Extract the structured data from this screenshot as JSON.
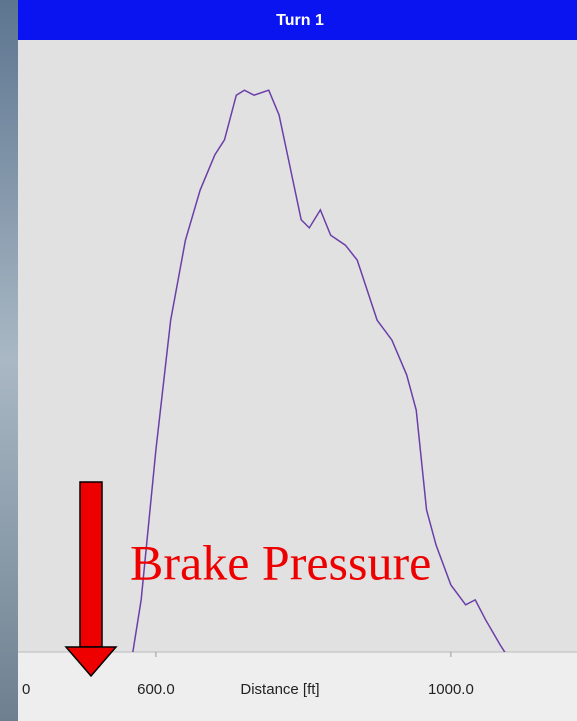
{
  "chart_data": {
    "type": "line",
    "title": "Turn 1",
    "xlabel": "Distance [ft]",
    "x_edge_label": "0",
    "annotation": "Brake Pressure",
    "x": [
      567,
      580,
      600,
      620,
      640,
      660,
      680,
      693,
      709,
      720,
      733,
      753,
      767,
      780,
      797,
      808,
      823,
      837,
      857,
      873,
      900,
      920,
      940,
      953,
      967,
      980,
      1000,
      1020,
      1033,
      1047,
      1067,
      1080
    ],
    "series": [
      {
        "color": "#6a3fa8",
        "values": [
          0,
          9.7,
          33.9,
          54.8,
          67.7,
          75.8,
          81.5,
          83.9,
          91.1,
          91.9,
          91.1,
          91.9,
          87.9,
          80.6,
          71,
          69.7,
          72.6,
          68.5,
          66.9,
          64.5,
          54.8,
          51.6,
          46,
          40.3,
          24.2,
          18.5,
          12.1,
          8.9,
          9.7,
          6.5,
          2.4,
          0
        ]
      }
    ],
    "xlim": [
      413,
      1171
    ],
    "ylim": [
      0,
      100
    ],
    "xticks": [
      {
        "value": 600,
        "label": "600.0"
      },
      {
        "value": 1000,
        "label": "1000.0"
      },
      1200
    ]
  }
}
